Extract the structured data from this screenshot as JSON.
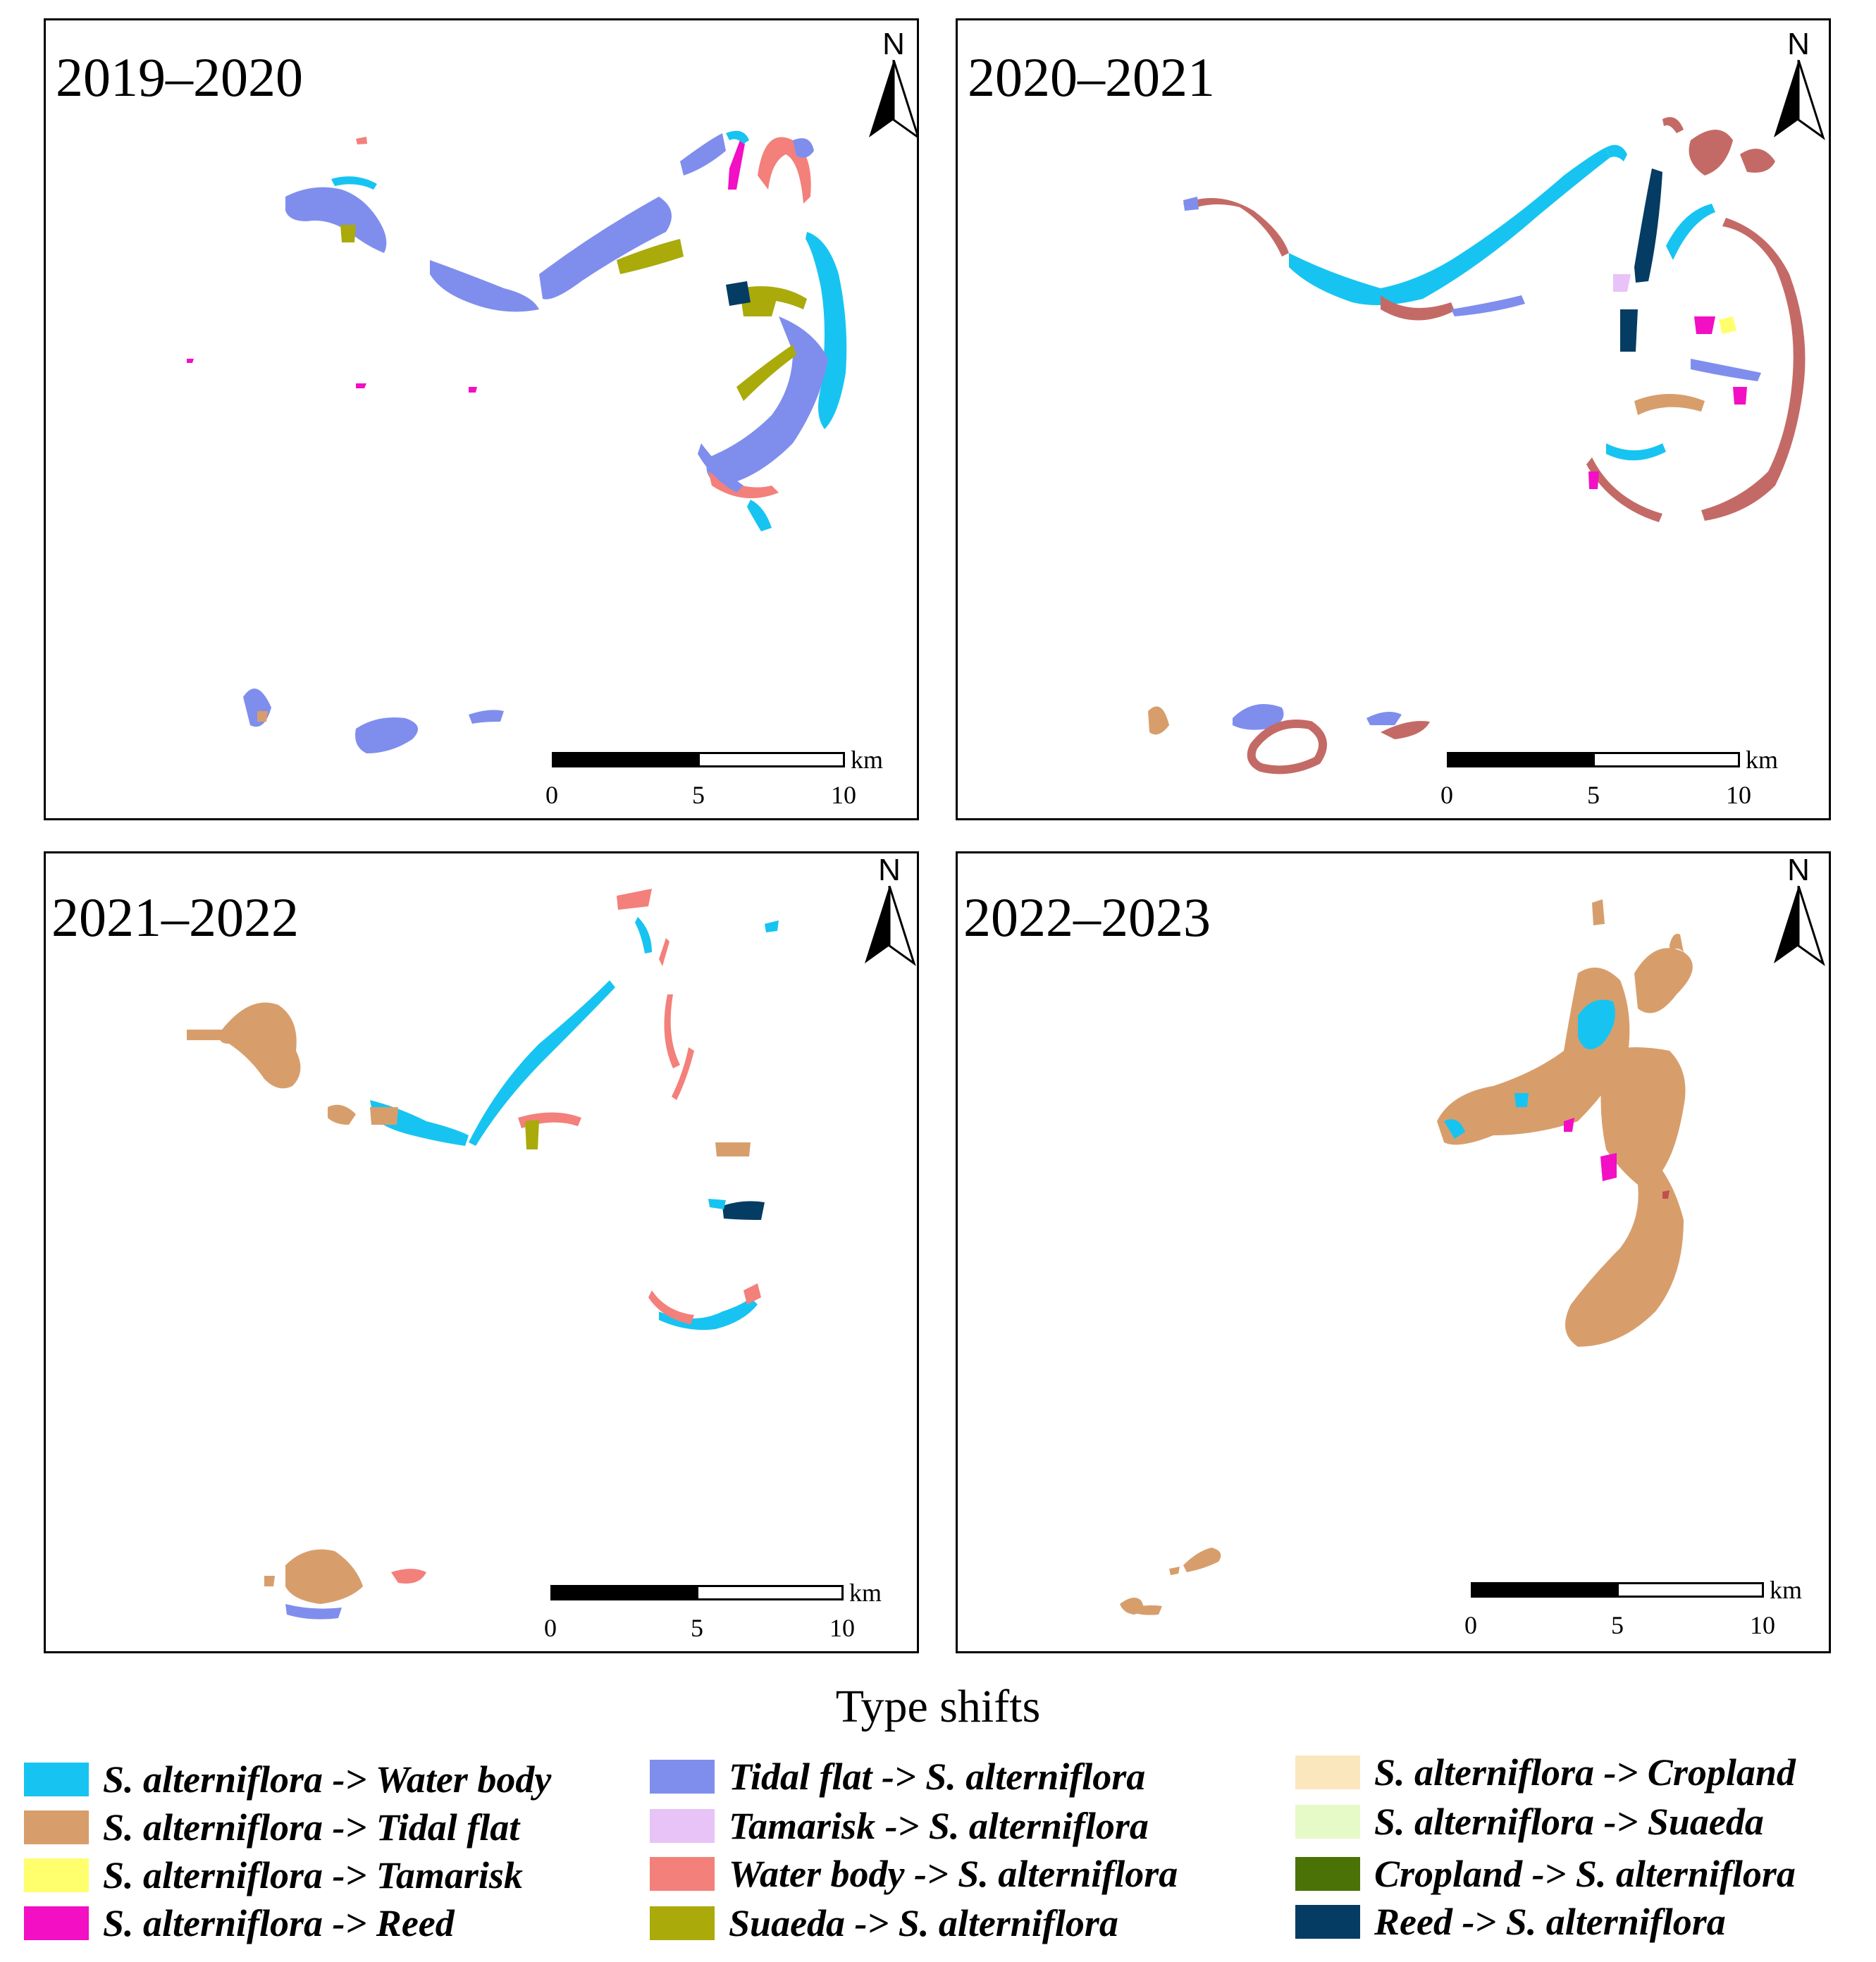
{
  "panels": [
    {
      "title": "2019–2020"
    },
    {
      "title": "2020–2021"
    },
    {
      "title": "2021–2022"
    },
    {
      "title": "2022–2023"
    }
  ],
  "north_label": "N",
  "scale": {
    "unit": "km",
    "ticks": [
      "0",
      "5",
      "10"
    ]
  },
  "legend": {
    "title": "Type shifts",
    "items": [
      {
        "label": "S. alterniflora ->  Water body",
        "color": "#17C4F1"
      },
      {
        "label": "S. alterniflora -> Tidal flat",
        "color": "#D79E6C"
      },
      {
        "label": "S. alterniflora -> Tamarisk",
        "color": "#FFFF6E"
      },
      {
        "label": "S. alterniflora -> Reed",
        "color": "#F20FC4"
      },
      {
        "label": "Tidal flat -> S. alterniflora",
        "color": "#7F8EED"
      },
      {
        "label": "Tamarisk -> S. alterniflora",
        "color": "#E7C3F7"
      },
      {
        "label": "Water body -> S. alterniflora",
        "color": "#F3807B"
      },
      {
        "label": "Suaeda -> S. alterniflora",
        "color": "#AAAA0B"
      },
      {
        "label": "S. alterniflora -> Cropland",
        "color": "#FBE7BE"
      },
      {
        "label": "S. alterniflora -> Suaeda",
        "color": "#E6FAC7"
      },
      {
        "label": "Cropland -> S. alterniflora",
        "color": "#4B7206"
      },
      {
        "label": "Reed -> S. alterniflora",
        "color": "#043C63"
      }
    ]
  }
}
